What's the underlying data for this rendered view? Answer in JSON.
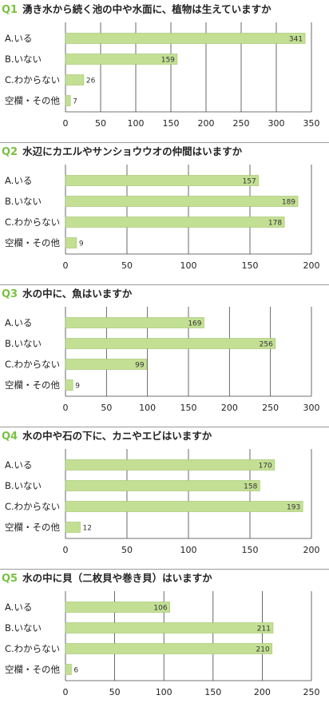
{
  "colors": {
    "bar": "#c3df94",
    "bar_stroke": "#9ec46a",
    "accent": "#79c142",
    "grid": "#444444"
  },
  "questions": [
    {
      "number": "Q1",
      "title": "湧き水から続く池の中や水面に、植物は生えていますか"
    },
    {
      "number": "Q2",
      "title": "水辺にカエルやサンショウウオの仲間はいますか"
    },
    {
      "number": "Q3",
      "title": "水の中に、魚はいますか"
    },
    {
      "number": "Q4",
      "title": "水の中や石の下に、カニやエビはいますか"
    },
    {
      "number": "Q5",
      "title": "水の中に貝（二枚貝や巻き貝）はいますか"
    }
  ],
  "chart_data": [
    {
      "type": "bar",
      "orientation": "horizontal",
      "categories": [
        "A.いる",
        "B.いない",
        "C.わからない",
        "空欄・その他"
      ],
      "values": [
        341,
        159,
        26,
        7
      ],
      "xlim": [
        0,
        350
      ],
      "xticks": [
        0,
        50,
        100,
        150,
        200,
        250,
        300,
        350
      ],
      "grid": true
    },
    {
      "type": "bar",
      "orientation": "horizontal",
      "categories": [
        "A.いる",
        "B.いない",
        "C.わからない",
        "空欄・その他"
      ],
      "values": [
        157,
        189,
        178,
        9
      ],
      "xlim": [
        0,
        200
      ],
      "xticks": [
        0,
        50,
        100,
        150,
        200
      ],
      "grid": true
    },
    {
      "type": "bar",
      "orientation": "horizontal",
      "categories": [
        "A.いる",
        "B.いない",
        "C.わからない",
        "空欄・その他"
      ],
      "values": [
        169,
        256,
        99,
        9
      ],
      "xlim": [
        0,
        300
      ],
      "xticks": [
        0,
        50,
        100,
        150,
        200,
        250,
        300
      ],
      "grid": true
    },
    {
      "type": "bar",
      "orientation": "horizontal",
      "categories": [
        "A.いる",
        "B.いない",
        "C.わからない",
        "空欄・その他"
      ],
      "values": [
        170,
        158,
        193,
        12
      ],
      "xlim": [
        0,
        200
      ],
      "xticks": [
        0,
        50,
        100,
        150,
        200
      ],
      "grid": true
    },
    {
      "type": "bar",
      "orientation": "horizontal",
      "categories": [
        "A.いる",
        "B.いない",
        "C.わからない",
        "空欄・その他"
      ],
      "values": [
        106,
        211,
        210,
        6
      ],
      "xlim": [
        0,
        250
      ],
      "xticks": [
        0,
        50,
        100,
        150,
        200,
        250
      ],
      "grid": true
    }
  ]
}
